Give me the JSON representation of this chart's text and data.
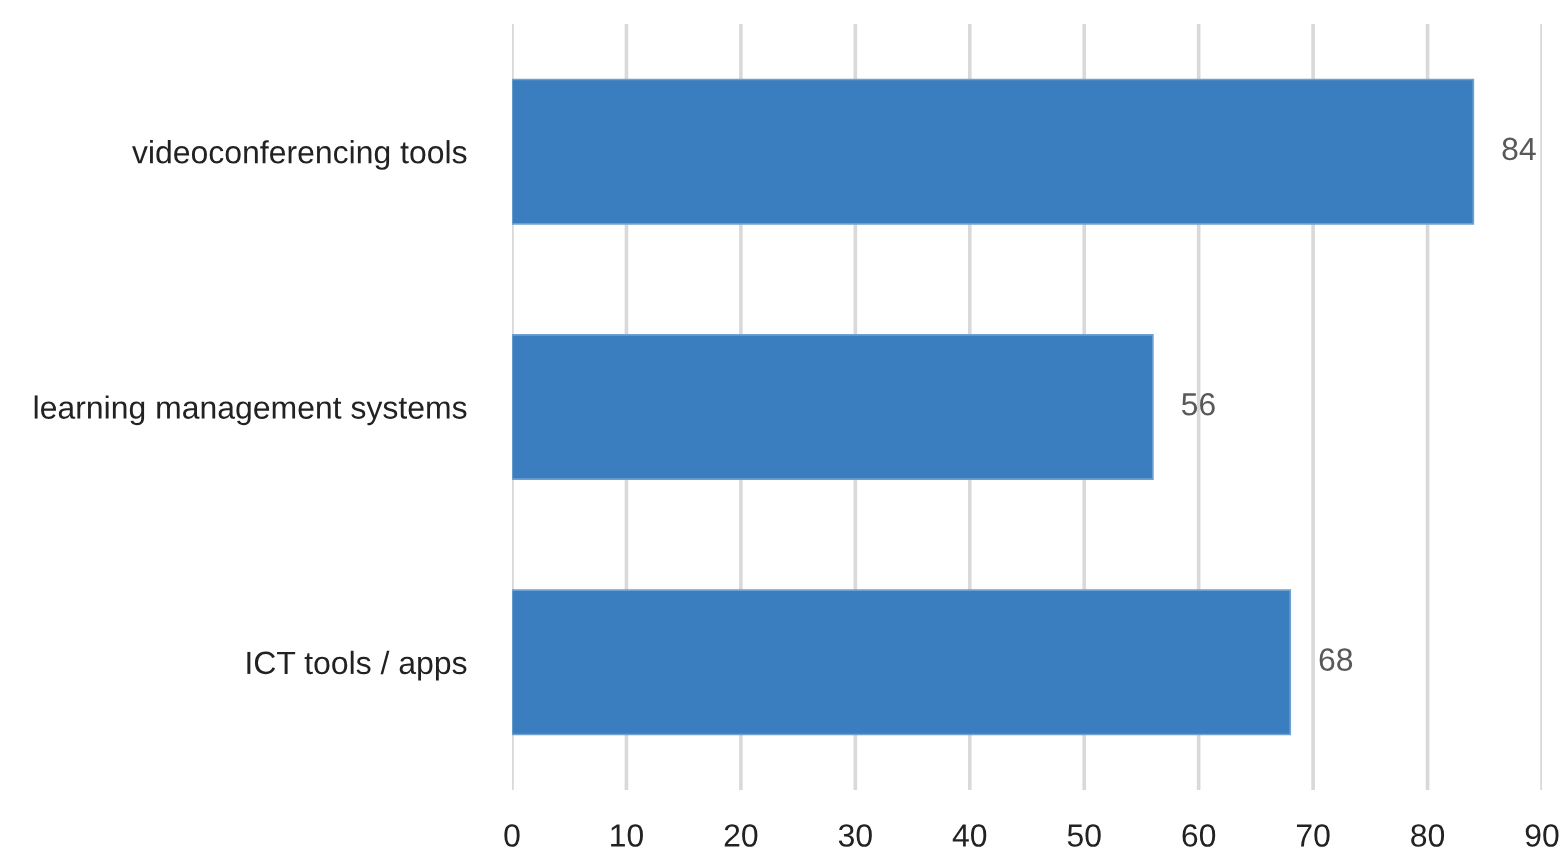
{
  "chart_data": {
    "type": "bar",
    "orientation": "horizontal",
    "categories": [
      "videoconferencing tools",
      "learning management systems",
      "ICT tools / apps"
    ],
    "values": [
      84,
      56,
      68
    ],
    "color": "#3a7ebf",
    "xlim": [
      0,
      90
    ],
    "xticks": [
      0,
      10,
      20,
      30,
      40,
      50,
      60,
      70,
      80,
      90
    ],
    "grid": "x",
    "data_labels": true
  }
}
